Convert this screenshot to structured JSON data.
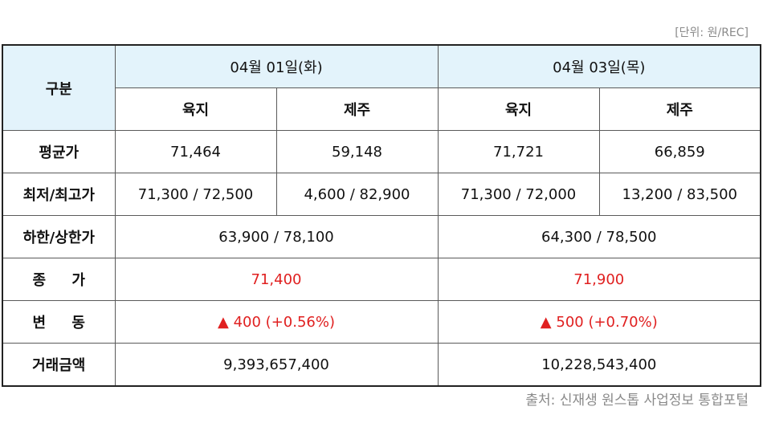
{
  "unit": "[단위: 원/REC]",
  "source": "출처: 신재생 원스톱 사업정보 통합포털",
  "header": {
    "corner": "구분",
    "date1": "04월 01일(화)",
    "date2": "04월 03일(목)",
    "sub1": "육지",
    "sub2": "제주",
    "sub3": "육지",
    "sub4": "제주"
  },
  "rows": {
    "avg": {
      "label": "평균가",
      "v1": "71,464",
      "v2": "59,148",
      "v3": "71,721",
      "v4": "66,859"
    },
    "minmax": {
      "label": "최저/최고가",
      "v1": "71,300 / 72,500",
      "v2": "4,600 / 82,900",
      "v3": "71,300 / 72,000",
      "v4": "13,200 / 83,500"
    },
    "limit": {
      "label": "하한/상한가",
      "v1": "63,900 / 78,100",
      "v2": "64,300 / 78,500"
    },
    "close": {
      "label": "종 가",
      "v1": "71,400",
      "v2": "71,900"
    },
    "change": {
      "label": "변 동",
      "v1": "▲ 400 (+0.56%)",
      "v2": "▲ 500 (+0.70%)"
    },
    "volume": {
      "label": "거래금액",
      "v1": "9,393,657,400",
      "v2": "10,228,543,400"
    }
  },
  "colors": {
    "header_bg": "#e3f3fb",
    "up": "#e02020"
  }
}
